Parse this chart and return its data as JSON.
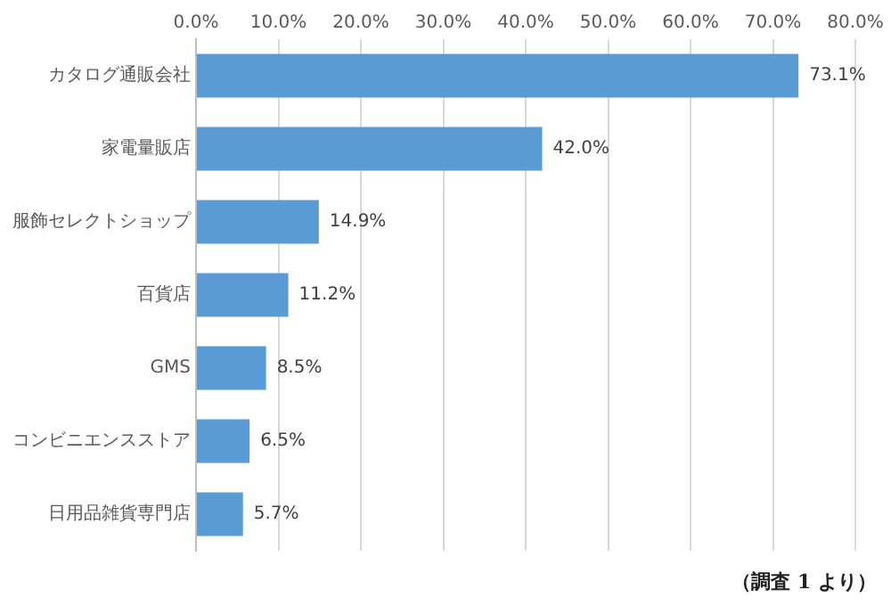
{
  "chart_data": {
    "type": "bar",
    "orientation": "horizontal",
    "categories": [
      "カタログ通販会社",
      "家電量販店",
      "服飾セレクトショップ",
      "百貨店",
      "GMS",
      "コンビニエンスストア",
      "日用品雑貨専門店"
    ],
    "values": [
      73.1,
      42.0,
      14.9,
      11.2,
      8.5,
      6.5,
      5.7
    ],
    "value_labels": [
      "73.1%",
      "42.0%",
      "14.9%",
      "11.2%",
      "8.5%",
      "6.5%",
      "5.7%"
    ],
    "color": "#5b9bd5",
    "xlim": [
      0,
      80
    ],
    "xticks": [
      {
        "value": 0,
        "label": "0.0%"
      },
      {
        "value": 10,
        "label": "10.0%"
      },
      {
        "value": 20,
        "label": "20.0%"
      },
      {
        "value": 30,
        "label": "30.0%"
      },
      {
        "value": 40,
        "label": "40.0%"
      },
      {
        "value": 50,
        "label": "50.0%"
      },
      {
        "value": 60,
        "label": "60.0%"
      },
      {
        "value": 70,
        "label": "70.0%"
      },
      {
        "value": 80,
        "label": "80.0%"
      }
    ],
    "grid": "x",
    "legend": false,
    "annotations": [
      "（調査 1 より）"
    ]
  }
}
